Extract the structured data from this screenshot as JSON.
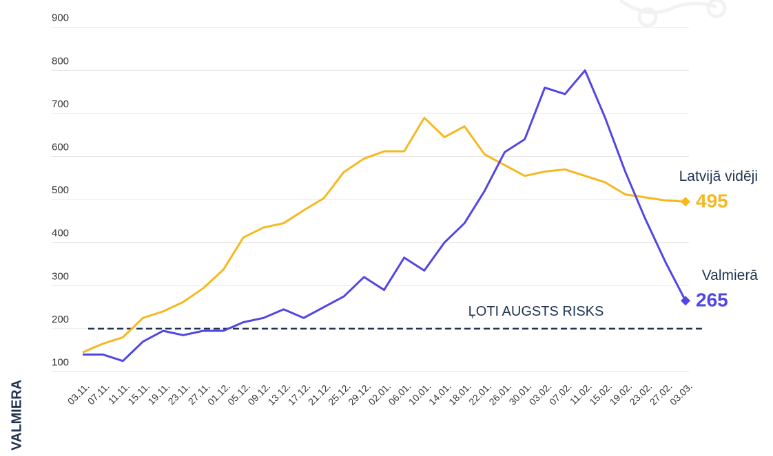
{
  "brand": "VALMIERA",
  "chart_data": {
    "type": "line",
    "categories": [
      "03.11.",
      "07.11.",
      "11.11.",
      "15.11.",
      "19.11.",
      "23.11.",
      "27.11.",
      "01.12.",
      "05.12.",
      "09.12.",
      "13.12.",
      "17.12.",
      "21.12.",
      "25.12.",
      "29.12.",
      "02.01.",
      "06.01.",
      "10.01.",
      "14.01.",
      "18.01.",
      "22.01.",
      "26.01.",
      "30.01.",
      "03.02.",
      "07.02.",
      "11.02.",
      "15.02.",
      "19.02.",
      "23.02.",
      "27.02.",
      "03.03."
    ],
    "series": [
      {
        "name": "Latvijā vidēji",
        "color": "#f5b820",
        "values": [
          145,
          165,
          180,
          225,
          240,
          262,
          294,
          337,
          412,
          435,
          445,
          475,
          503,
          564,
          595,
          612,
          612,
          690,
          645,
          670,
          605,
          580,
          555,
          565,
          570,
          555,
          540,
          512,
          505,
          498,
          495
        ]
      },
      {
        "name": "Valmierā",
        "color": "#5146e3",
        "values": [
          140,
          140,
          125,
          170,
          195,
          185,
          195,
          195,
          215,
          225,
          245,
          225,
          250,
          275,
          320,
          290,
          365,
          335,
          400,
          445,
          520,
          610,
          640,
          760,
          745,
          800,
          690,
          565,
          455,
          355,
          265
        ]
      }
    ],
    "threshold": {
      "value": 200,
      "label": "ĻOTI AUGSTS RISKS"
    },
    "ylim": [
      80,
      930
    ],
    "yticks": [
      100,
      200,
      300,
      400,
      500,
      600,
      700,
      800,
      900
    ],
    "grid": true
  }
}
